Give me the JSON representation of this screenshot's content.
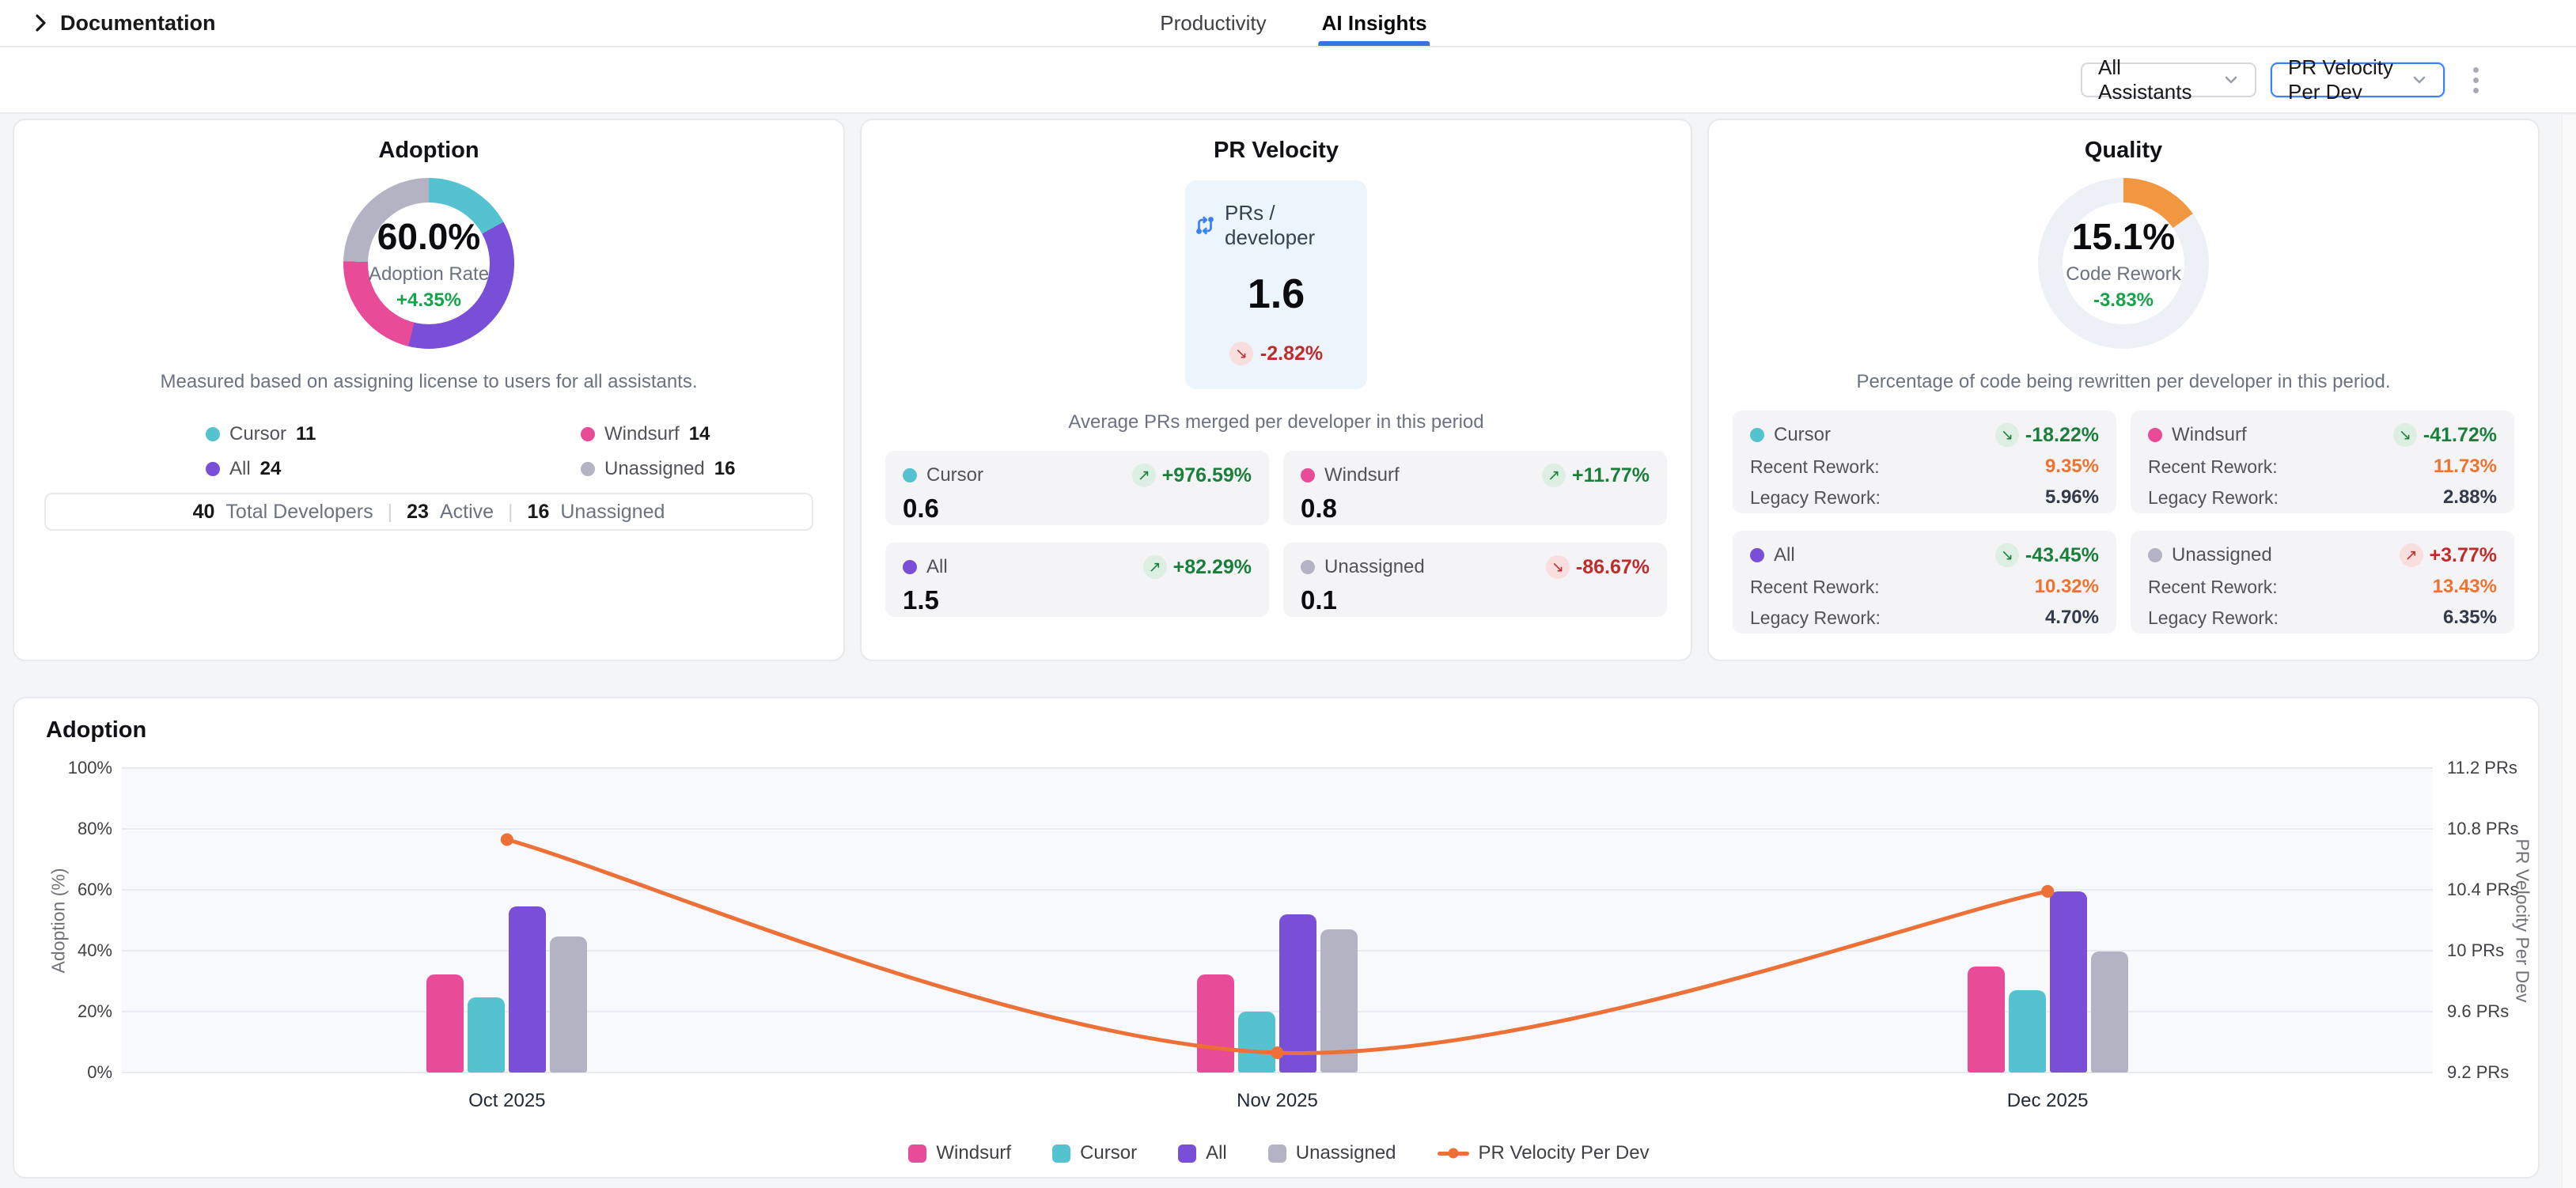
{
  "topbar": {
    "breadcrumb": "Documentation",
    "tabs": [
      {
        "label": "Productivity",
        "active": false
      },
      {
        "label": "AI Insights",
        "active": true
      }
    ]
  },
  "toolbar": {
    "assistant_filter": "All Assistants",
    "metric_filter": "PR Velocity Per Dev"
  },
  "adoption_card": {
    "title": "Adoption",
    "center_value": "60.0%",
    "center_label": "Adoption Rate",
    "center_trend": "+4.35%",
    "center_trend_sentiment": "pos",
    "donut": [
      {
        "name": "Cursor",
        "value": 11,
        "color": "#54c3cf"
      },
      {
        "name": "All",
        "value": 24,
        "color": "#7a4fd8"
      },
      {
        "name": "Windsurf",
        "value": 14,
        "color": "#e84b97"
      },
      {
        "name": "Unassigned",
        "value": 16,
        "color": "#b4b3c3"
      }
    ],
    "description": "Measured based on assigning license to users for all assistants.",
    "legend": [
      {
        "name": "Cursor",
        "value": "11",
        "color": "#54c3cf"
      },
      {
        "name": "Windsurf",
        "value": "14",
        "color": "#e84b97"
      },
      {
        "name": "All",
        "value": "24",
        "color": "#7a4fd8"
      },
      {
        "name": "Unassigned",
        "value": "16",
        "color": "#b4b3c3"
      }
    ],
    "summary": {
      "separator": "|",
      "items": [
        {
          "value": "40",
          "label": "Total Developers"
        },
        {
          "value": "23",
          "label": "Active"
        },
        {
          "value": "16",
          "label": "Unassigned"
        }
      ]
    }
  },
  "pr_velocity_card": {
    "title": "PR Velocity",
    "metric_label": "PRs / developer",
    "metric_value": "1.6",
    "metric_trend": {
      "arrow": "↘",
      "text": "-2.82%",
      "sentiment": "neg"
    },
    "description": "Average PRs merged per developer in this period",
    "tiles": [
      {
        "name": "Cursor",
        "color": "#54c3cf",
        "value": "0.6",
        "arrow": "↗",
        "trend": "+976.59%",
        "sentiment": "pos"
      },
      {
        "name": "Windsurf",
        "color": "#e84b97",
        "value": "0.8",
        "arrow": "↗",
        "trend": "+11.77%",
        "sentiment": "pos"
      },
      {
        "name": "All",
        "color": "#7a4fd8",
        "value": "1.5",
        "arrow": "↗",
        "trend": "+82.29%",
        "sentiment": "pos"
      },
      {
        "name": "Unassigned",
        "color": "#b4b3c3",
        "value": "0.1",
        "arrow": "↘",
        "trend": "-86.67%",
        "sentiment": "neg"
      }
    ]
  },
  "quality_card": {
    "title": "Quality",
    "center_value": "15.1%",
    "center_label": "Code Rework",
    "center_trend": "-3.83%",
    "center_trend_sentiment": "pos",
    "arc": {
      "pct": 15.1,
      "color": "#f0973f",
      "track": "#edf0f6"
    },
    "description": "Percentage of code being rewritten per developer in this period.",
    "recent_label": "Recent Rework:",
    "legacy_label": "Legacy Rework:",
    "tiles": [
      {
        "name": "Cursor",
        "color": "#54c3cf",
        "arrow": "↘",
        "trend": "-18.22%",
        "sentiment": "pos",
        "recent": "9.35%",
        "legacy": "5.96%"
      },
      {
        "name": "Windsurf",
        "color": "#e84b97",
        "arrow": "↘",
        "trend": "-41.72%",
        "sentiment": "pos",
        "recent": "11.73%",
        "legacy": "2.88%"
      },
      {
        "name": "All",
        "color": "#7a4fd8",
        "arrow": "↘",
        "trend": "-43.45%",
        "sentiment": "pos",
        "recent": "10.32%",
        "legacy": "4.70%"
      },
      {
        "name": "Unassigned",
        "color": "#b4b3c3",
        "arrow": "↗",
        "trend": "+3.77%",
        "sentiment": "neg",
        "recent": "13.43%",
        "legacy": "6.35%"
      }
    ]
  },
  "chart_data": {
    "type": "bar+line",
    "title": "Adoption",
    "categories": [
      "Oct 2025",
      "Nov 2025",
      "Dec 2025"
    ],
    "bar_series": [
      {
        "name": "Windsurf",
        "color": "#e84b97",
        "values": [
          32.2,
          32.1,
          34.7
        ]
      },
      {
        "name": "Cursor",
        "color": "#54c3cf",
        "values": [
          24.6,
          19.9,
          27.0
        ]
      },
      {
        "name": "All",
        "color": "#7a4fd8",
        "values": [
          54.6,
          52.0,
          59.6
        ]
      },
      {
        "name": "Unassigned",
        "color": "#b4b3c3",
        "values": [
          44.6,
          47.0,
          39.7
        ]
      }
    ],
    "line_series": {
      "name": "PR Velocity Per Dev",
      "color": "#ed7136",
      "values": [
        10.73,
        9.33,
        10.39
      ]
    },
    "left_axis": {
      "label": "Adoption (%)",
      "min": 0,
      "max": 100,
      "ticks": [
        "0%",
        "20%",
        "40%",
        "60%",
        "80%",
        "100%"
      ]
    },
    "right_axis": {
      "label": "PR Velocity Per Dev",
      "min": 9.2,
      "max": 11.2,
      "ticks": [
        "9.2 PRs",
        "9.6 PRs",
        "10 PRs",
        "10.4 PRs",
        "10.8 PRs",
        "11.2 PRs"
      ]
    },
    "grid": true,
    "legend_position": "bottom",
    "legend": [
      {
        "label": "Windsurf",
        "color": "#e84b97",
        "type": "bar"
      },
      {
        "label": "Cursor",
        "color": "#54c3cf",
        "type": "bar"
      },
      {
        "label": "All",
        "color": "#7a4fd8",
        "type": "bar"
      },
      {
        "label": "Unassigned",
        "color": "#b4b3c3",
        "type": "bar"
      },
      {
        "label": "PR Velocity Per Dev",
        "color": "#ed7136",
        "type": "line"
      }
    ]
  }
}
